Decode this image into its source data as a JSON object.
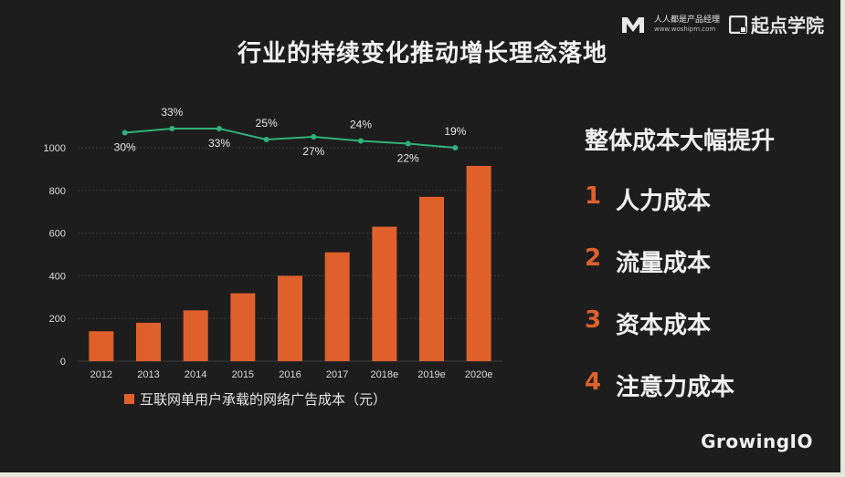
{
  "title": "行业的持续变化推动增长理念落地",
  "brand": {
    "woshipm_cn": "人人都是产品经理",
    "woshipm_url": "www.woshipm.com",
    "qidian": "起点学院"
  },
  "right_panel": {
    "heading": "整体成本大幅提升",
    "items": [
      {
        "num": "1",
        "label": "人力成本"
      },
      {
        "num": "2",
        "label": "流量成本"
      },
      {
        "num": "3",
        "label": "资本成本"
      },
      {
        "num": "4",
        "label": "注意力成本"
      }
    ]
  },
  "footer": {
    "logo_text": "GrowingIO"
  },
  "chart_data": {
    "type": "bar",
    "categories": [
      "2012",
      "2013",
      "2014",
      "2015",
      "2016",
      "2017",
      "2018e",
      "2019e",
      "2020e"
    ],
    "series": [
      {
        "name": "互联网单用户承载的网络广告成本（元）",
        "values": [
          140,
          180,
          238,
          318,
          400,
          510,
          630,
          770,
          915
        ]
      }
    ],
    "line_series": {
      "values": [
        30,
        33,
        33,
        25,
        27,
        24,
        22,
        19
      ],
      "labels": [
        "30%",
        "33%",
        "33%",
        "25%",
        "27%",
        "24%",
        "22%",
        "19%"
      ],
      "label_side": [
        "below",
        "above",
        "below",
        "above",
        "below",
        "above",
        "below",
        "above"
      ]
    },
    "ylim": [
      0,
      1000
    ],
    "yticks": [
      "0",
      "200",
      "400",
      "600",
      "800",
      "1000"
    ],
    "legend": "bottom",
    "colors": {
      "bar": "#e0602c",
      "line": "#2fb27a",
      "axis_text": "#dcdcdc",
      "grid": "#3a3a3a"
    }
  }
}
